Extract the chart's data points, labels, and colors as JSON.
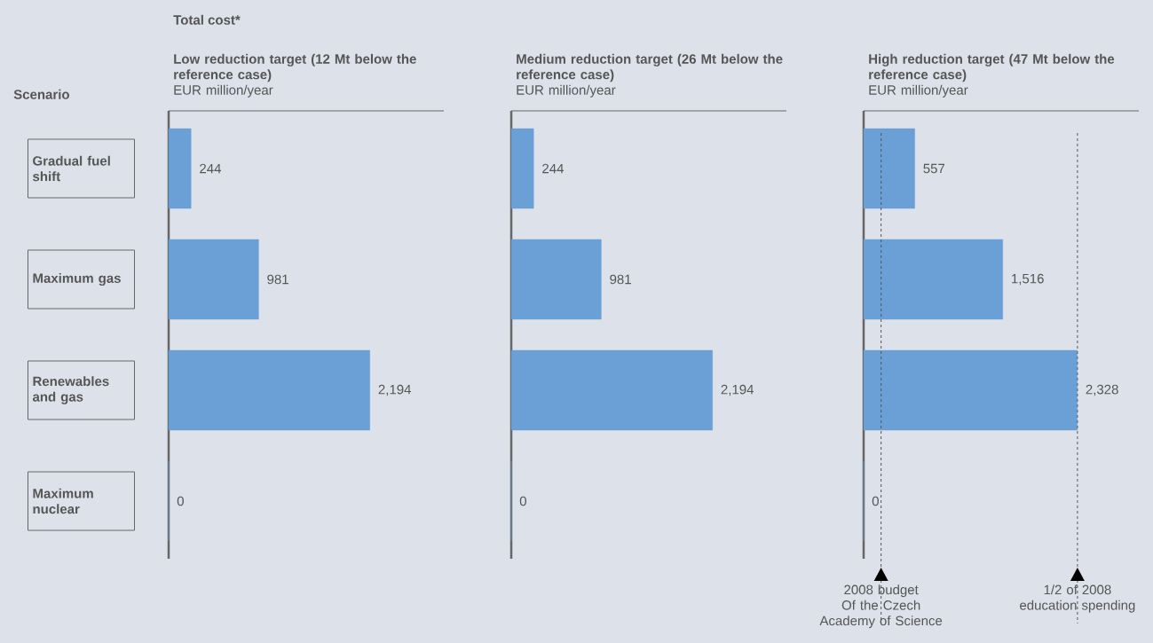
{
  "chart_data": [
    {
      "type": "bar",
      "orientation": "horizontal",
      "title": "Low reduction target (12 Mt below the reference case)",
      "subtitle": "EUR million/year",
      "ylabel": "Scenario",
      "annotations": [
        "Total cost*"
      ],
      "categories": [
        "Gradual fuel shift",
        "Maximum gas",
        "Renewables and gas",
        "Maximum nuclear"
      ],
      "values": [
        244,
        981,
        2194,
        0
      ],
      "value_labels": [
        "244",
        "981",
        "2,194",
        "0"
      ],
      "color": "#6aa0d6",
      "xlim": [
        0,
        3000
      ],
      "tick_labels": "y"
    },
    {
      "type": "bar",
      "orientation": "horizontal",
      "title": "Medium reduction target (26 Mt below the reference case)",
      "subtitle": "EUR million/year",
      "values": [
        244,
        981,
        2194,
        0
      ],
      "value_labels": [
        "244",
        "981",
        "2,194",
        "0"
      ],
      "color": "#6aa0d6",
      "xlim": [
        0,
        3000
      ],
      "tick_labels": false
    },
    {
      "type": "bar",
      "orientation": "horizontal",
      "title": "High reduction target (47 Mt below the reference case)",
      "subtitle": "EUR million/year",
      "values": [
        557,
        1516,
        2328,
        0
      ],
      "value_labels": [
        "557",
        "1,516",
        "2,328",
        "0"
      ],
      "color": "#6aa0d6",
      "tick_labels": false,
      "ref_lines": [
        {
          "axis": "x",
          "value": 190,
          "label": "2008 budget Of the Czech Academy of Science",
          "line_style": "dashed",
          "color": "#555555"
        },
        {
          "axis": "x",
          "value": 2330,
          "label": "1/2 of 2008 education spending",
          "line_style": "dashed",
          "color": "#555555"
        }
      ]
    }
  ]
}
